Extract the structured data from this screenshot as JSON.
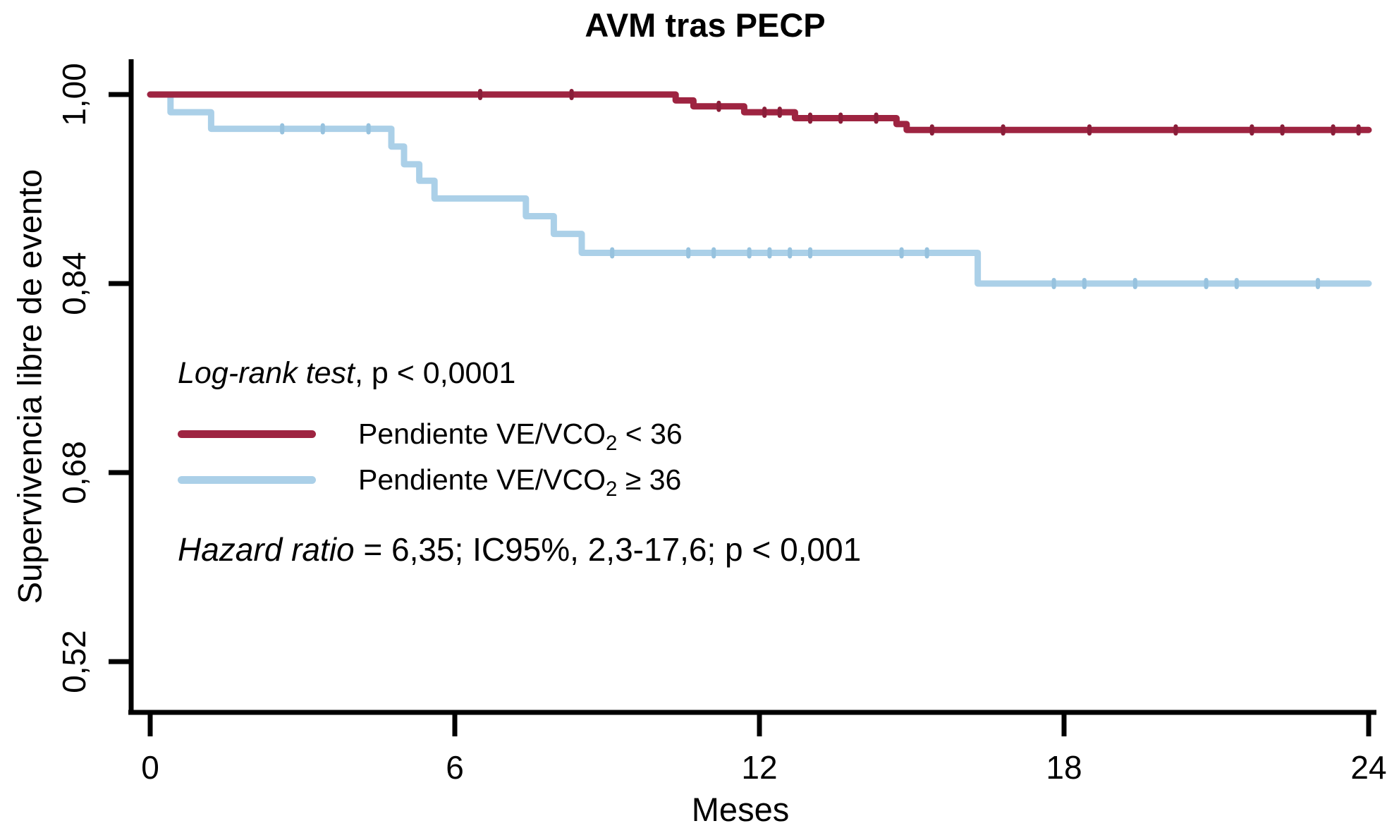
{
  "chart_data": {
    "type": "line",
    "subtype": "kaplan-meier-step",
    "title": "AVM tras PECP",
    "xlabel": "Meses",
    "ylabel": "Supervivencia libre de evento",
    "xlim": [
      0,
      24
    ],
    "ylim_shown": [
      0.48,
      1.02
    ],
    "grid": false,
    "legend_position": "inside-left-middle",
    "x_tick_values": [
      0,
      6,
      12,
      18,
      24
    ],
    "x_tick_labels": [
      "0",
      "6",
      "12",
      "18",
      "24"
    ],
    "y_tick_values": [
      1.0,
      0.84,
      0.68,
      0.52
    ],
    "y_tick_labels": [
      "1,00",
      "0,84",
      "0,68",
      "0,52"
    ],
    "annotations": {
      "logrank_italic": "Log-rank test",
      "logrank_rest": ", p < 0,0001",
      "hazard_italic": "Hazard ratio",
      "hazard_rest": " = 6,35; IC95%, 2,3-17,6; p < 0,001"
    },
    "series": [
      {
        "name": "Pendiente VE/VCO2 < 36",
        "label_prefix": "Pendiente VE/VCO",
        "label_sub": "2",
        "label_suffix": " < 36",
        "color": "#9e2441",
        "censor_color": "#8a1e39",
        "steps": [
          [
            0,
            1.0
          ],
          [
            10.35,
            0.995
          ],
          [
            10.7,
            0.99
          ],
          [
            11.7,
            0.985
          ],
          [
            12.7,
            0.98
          ],
          [
            14.7,
            0.975
          ],
          [
            14.9,
            0.97
          ],
          [
            24,
            0.97
          ]
        ],
        "censor_ticks": [
          [
            6.5,
            1.0
          ],
          [
            8.3,
            1.0
          ],
          [
            11.2,
            0.99
          ],
          [
            12.1,
            0.985
          ],
          [
            12.4,
            0.985
          ],
          [
            13.0,
            0.98
          ],
          [
            13.6,
            0.98
          ],
          [
            14.3,
            0.98
          ],
          [
            15.4,
            0.97
          ],
          [
            16.8,
            0.97
          ],
          [
            18.5,
            0.97
          ],
          [
            20.2,
            0.97
          ],
          [
            21.7,
            0.97
          ],
          [
            22.3,
            0.97
          ],
          [
            23.3,
            0.97
          ],
          [
            23.8,
            0.97
          ]
        ]
      },
      {
        "name": "Pendiente VE/VCO2 ≥ 36",
        "label_prefix": "Pendiente VE/VCO",
        "label_sub": "2",
        "label_suffix": " ≥ 36",
        "color": "#abd0e8",
        "censor_color": "#97c2de",
        "steps": [
          [
            0,
            1.0
          ],
          [
            0.4,
            0.985
          ],
          [
            1.2,
            0.971
          ],
          [
            4.75,
            0.956
          ],
          [
            5.0,
            0.941
          ],
          [
            5.3,
            0.927
          ],
          [
            5.6,
            0.912
          ],
          [
            7.4,
            0.897
          ],
          [
            7.95,
            0.882
          ],
          [
            8.5,
            0.866
          ],
          [
            16.3,
            0.84
          ],
          [
            24,
            0.84
          ]
        ],
        "censor_ticks": [
          [
            2.6,
            0.971
          ],
          [
            3.4,
            0.971
          ],
          [
            4.3,
            0.971
          ],
          [
            9.1,
            0.866
          ],
          [
            10.6,
            0.866
          ],
          [
            11.1,
            0.866
          ],
          [
            11.8,
            0.866
          ],
          [
            12.2,
            0.866
          ],
          [
            12.6,
            0.866
          ],
          [
            13.0,
            0.866
          ],
          [
            14.8,
            0.866
          ],
          [
            15.3,
            0.866
          ],
          [
            17.8,
            0.84
          ],
          [
            18.4,
            0.84
          ],
          [
            19.4,
            0.84
          ],
          [
            20.8,
            0.84
          ],
          [
            21.4,
            0.84
          ],
          [
            23.0,
            0.84
          ]
        ]
      }
    ]
  }
}
